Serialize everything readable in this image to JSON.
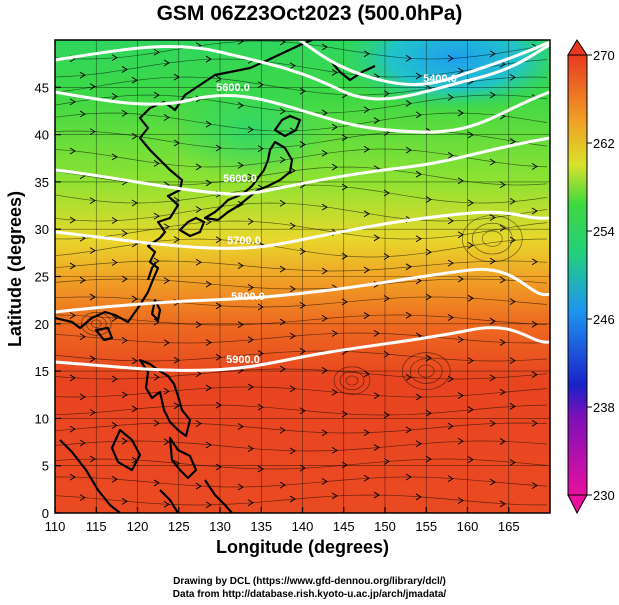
{
  "title": "GSM 06Z23Oct2023 (500.0hPa)",
  "xlabel": "Longitude (degrees)",
  "ylabel": "Latitude (degrees)",
  "credits": {
    "line1": "Drawing by DCL (https://www.gfd-dennou.org/library/dcl/)",
    "line2": "Data from http://database.rish.kyoto-u.ac.jp/arch/jmadata/"
  },
  "map": {
    "lon_range": [
      110,
      170
    ],
    "lat_range": [
      0,
      50
    ],
    "lon_ticks": [
      110,
      115,
      120,
      125,
      130,
      135,
      140,
      145,
      150,
      155,
      160,
      165
    ],
    "lat_ticks": [
      0,
      5,
      10,
      15,
      20,
      25,
      30,
      35,
      40,
      45
    ]
  },
  "colorbar": {
    "min": 230,
    "max": 270,
    "tick_labels": [
      "230",
      "238",
      "246",
      "254",
      "262",
      "270"
    ],
    "colors": [
      "#e8109e",
      "#1a22c8",
      "#1e96f0",
      "#2ed84a",
      "#e8e62a",
      "#f08a1e",
      "#e83a20"
    ]
  },
  "contours": [
    {
      "label": "5600.0"
    },
    {
      "label": "5400.0"
    },
    {
      "label": "5600.0"
    },
    {
      "label": "5700.0"
    },
    {
      "label": "5800.0"
    },
    {
      "label": "5900.0"
    }
  ]
}
